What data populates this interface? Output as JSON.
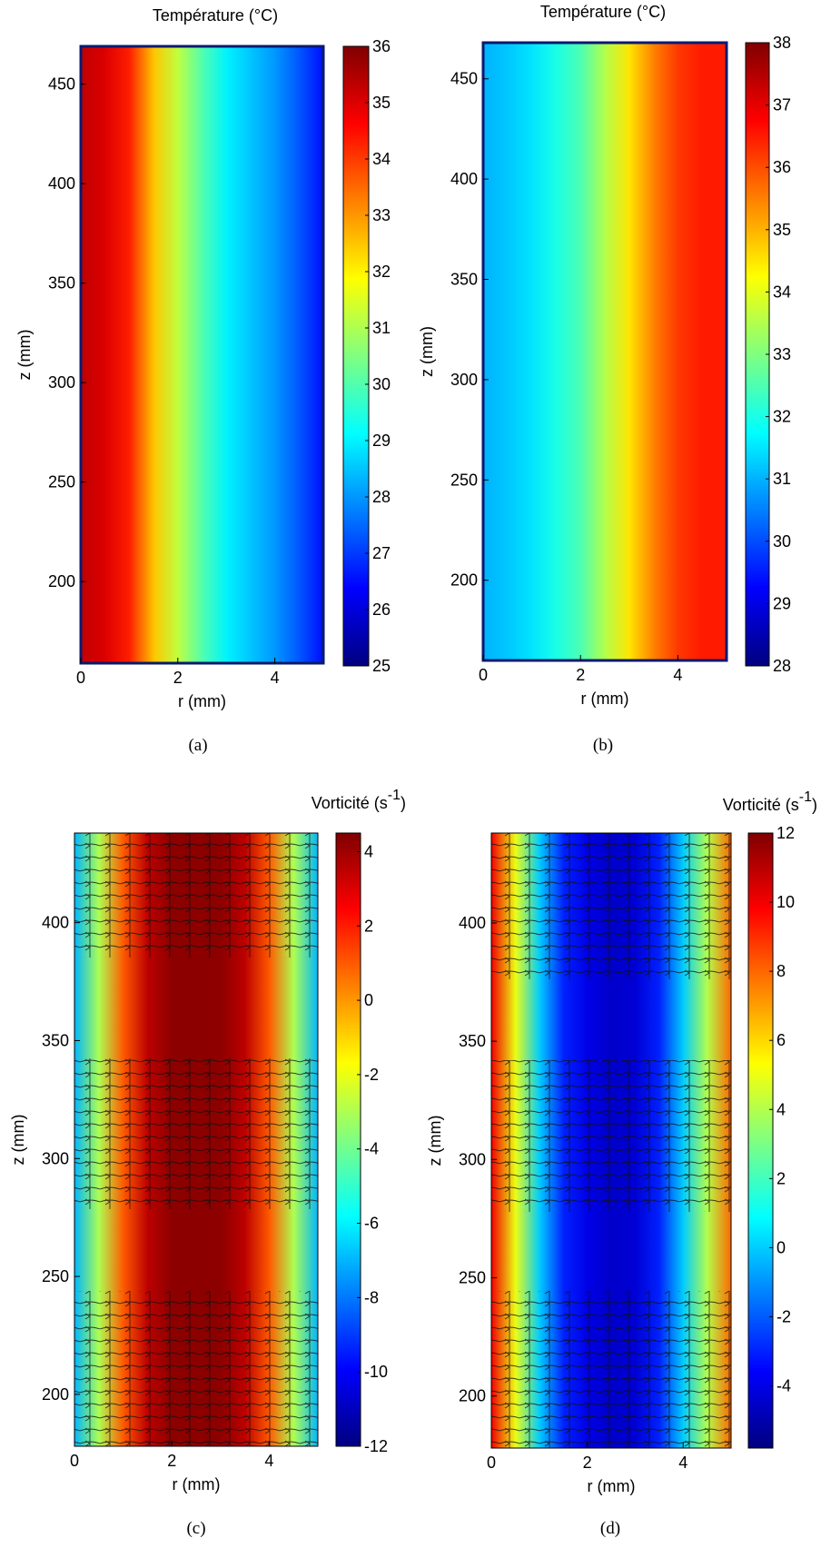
{
  "chart_data": [
    {
      "type": "heatmap",
      "title": "Température (°C)",
      "xlabel": "r (mm)",
      "ylabel": "z (mm)",
      "caption": "(a)",
      "x": [
        0,
        0.5,
        1,
        1.5,
        2,
        2.5,
        3,
        3.5,
        4,
        4.5,
        5
      ],
      "values": [
        35.3,
        35,
        34.3,
        32.5,
        31.2,
        30,
        29,
        28.5,
        28,
        27.3,
        26.5
      ],
      "xlim": [
        0,
        5
      ],
      "xticks": [
        0,
        2,
        4
      ],
      "ylim": [
        159,
        469
      ],
      "yticks": [
        200,
        250,
        300,
        350,
        400,
        450
      ],
      "clim": [
        25,
        36
      ],
      "cticks": [
        25,
        26,
        27,
        28,
        29,
        30,
        31,
        32,
        33,
        34,
        35,
        36
      ]
    },
    {
      "type": "heatmap",
      "title": "Température (°C)",
      "xlabel": "r (mm)",
      "ylabel": "z (mm)",
      "caption": "(b)",
      "x": [
        0,
        0.5,
        1,
        1.5,
        2,
        2.5,
        3,
        3.5,
        4,
        4.5,
        5
      ],
      "values": [
        31,
        31.2,
        31.5,
        32,
        32.5,
        33.5,
        34.5,
        35.5,
        36.2,
        36.5,
        36.5
      ],
      "xlim": [
        0,
        5
      ],
      "xticks": [
        0,
        2,
        4
      ],
      "ylim": [
        160,
        468
      ],
      "yticks": [
        200,
        250,
        300,
        350,
        400,
        450
      ],
      "clim": [
        28,
        38
      ],
      "cticks": [
        28,
        29,
        30,
        31,
        32,
        33,
        34,
        35,
        36,
        37,
        38
      ]
    },
    {
      "type": "heatmap",
      "title_main": "Vorticité (s",
      "title_sup": "-1",
      "title_end": ")",
      "xlabel": "r (mm)",
      "ylabel": "z (mm)",
      "caption": "(c)",
      "x": [
        0,
        0.5,
        1,
        1.5,
        2,
        2.5,
        3,
        3.5,
        4,
        4.5,
        5
      ],
      "values": [
        -7,
        -3,
        1,
        3.5,
        4.3,
        4.3,
        4.3,
        3.5,
        1,
        -3,
        -7
      ],
      "xlim": [
        0,
        5
      ],
      "xticks": [
        0,
        2,
        4
      ],
      "ylim": [
        178,
        438
      ],
      "yticks": [
        200,
        250,
        300,
        350,
        400
      ],
      "clim": [
        -12,
        4.5
      ],
      "cticks": [
        -12,
        -10,
        -8,
        -6,
        -4,
        -2,
        0,
        2,
        4
      ]
    },
    {
      "type": "heatmap",
      "title_main": "Vorticité (s",
      "title_sup": "-1",
      "title_end": ")",
      "xlabel": "r (mm)",
      "ylabel": "z (mm)",
      "caption": "(d)",
      "x": [
        0,
        0.5,
        1,
        1.5,
        2,
        2.5,
        3,
        3.5,
        4,
        4.5,
        5
      ],
      "values": [
        10,
        5,
        0,
        -3,
        -4,
        -4.5,
        -4.3,
        -3,
        0,
        4,
        8
      ],
      "xlim": [
        0,
        5
      ],
      "xticks": [
        0,
        2,
        4
      ],
      "ylim": [
        178,
        438
      ],
      "yticks": [
        200,
        250,
        300,
        350,
        400
      ],
      "clim": [
        -5.8,
        12
      ],
      "cticks": [
        -4,
        -2,
        0,
        2,
        4,
        6,
        8,
        10,
        12
      ]
    }
  ]
}
